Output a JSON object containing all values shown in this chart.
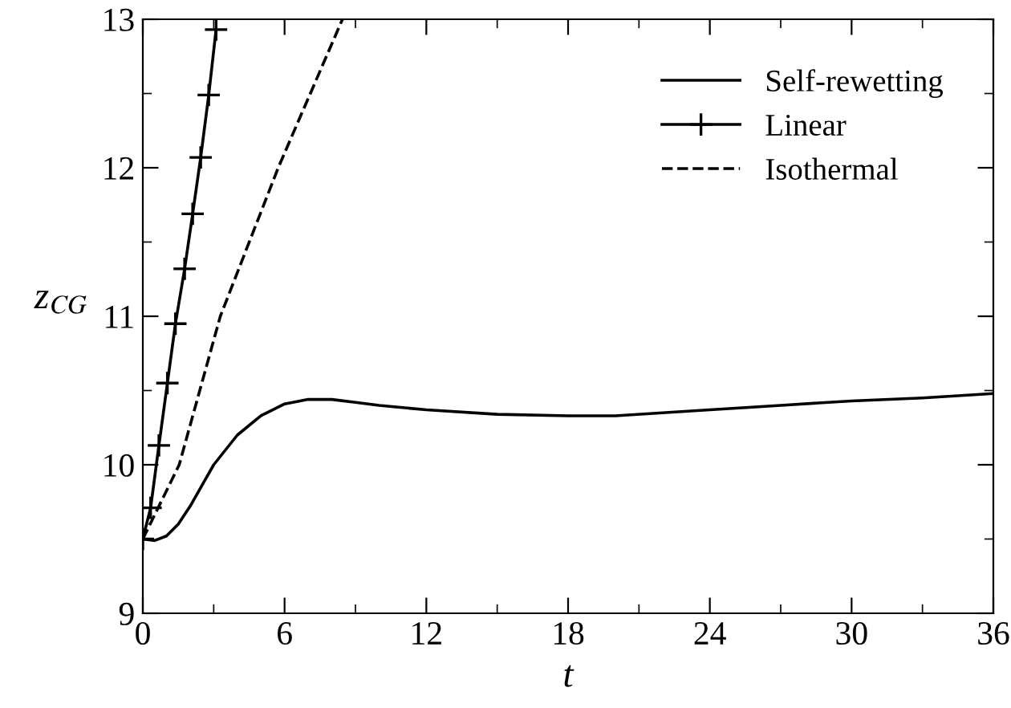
{
  "chart_data": {
    "type": "line",
    "xlabel": "t",
    "ylabel": "z$_{CG}$",
    "xlim": [
      0,
      36
    ],
    "ylim": [
      9,
      13
    ],
    "xticks": [
      0,
      6,
      12,
      18,
      24,
      30,
      36
    ],
    "yticks": [
      9,
      10,
      11,
      12,
      13
    ],
    "grid": false,
    "legend": "top right",
    "series": [
      {
        "name": "Self-rewetting",
        "color": "#000000",
        "line_style": "solid",
        "marker": "none",
        "x": [
          0,
          0.5,
          1,
          1.5,
          2,
          2.5,
          3,
          4,
          5,
          6,
          7,
          8,
          9,
          10,
          12,
          15,
          18,
          20,
          22,
          24,
          27,
          30,
          33,
          36
        ],
        "values": [
          9.5,
          9.49,
          9.52,
          9.6,
          9.72,
          9.86,
          10.0,
          10.2,
          10.33,
          10.41,
          10.44,
          10.44,
          10.42,
          10.4,
          10.37,
          10.34,
          10.33,
          10.33,
          10.35,
          10.37,
          10.4,
          10.43,
          10.45,
          10.48
        ]
      },
      {
        "name": "Linear",
        "color": "#000000",
        "line_style": "solid",
        "marker": "cross",
        "x": [
          0,
          0.33,
          0.68,
          1.04,
          1.38,
          1.77,
          2.11,
          2.45,
          2.79,
          3.1
        ],
        "values": [
          9.5,
          9.71,
          10.13,
          10.55,
          10.95,
          11.32,
          11.69,
          12.07,
          12.49,
          12.93
        ]
      },
      {
        "name": "Isothermal",
        "color": "#000000",
        "line_style": "dashed",
        "marker": "none",
        "x": [
          0,
          1.54,
          3.28,
          5.73,
          8.45
        ],
        "values": [
          9.5,
          10,
          11,
          12,
          13
        ]
      }
    ]
  }
}
